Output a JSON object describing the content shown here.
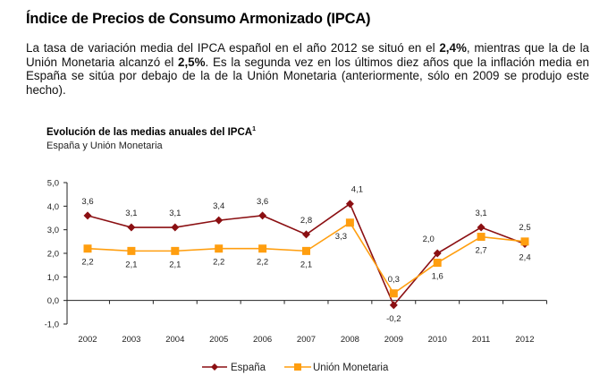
{
  "page": {
    "title": "Índice de Precios de Consumo Armonizado (IPCA)",
    "paragraph": [
      {
        "text": "La tasa de variación media del IPCA español en el año 2012 se situó en el ",
        "bold": false
      },
      {
        "text": "2,4%",
        "bold": true
      },
      {
        "text": ", mientras que la de la Unión Monetaria alcanzó el ",
        "bold": false
      },
      {
        "text": "2,5%",
        "bold": true
      },
      {
        "text": ". Es la segunda vez en los últimos diez años que la inflación media en España se sitúa por debajo de la de la Unión Monetaria (anteriormente, sólo en 2009 se produjo este hecho).",
        "bold": false
      }
    ]
  },
  "chart_data": {
    "type": "line",
    "title": "Evolución de las medias anuales del IPCA",
    "title_superscript": "1",
    "subtitle": "España y Unión Monetaria",
    "xlabel": "",
    "ylabel": "",
    "categories": [
      "2002",
      "2003",
      "2004",
      "2005",
      "2006",
      "2007",
      "2008",
      "2009",
      "2010",
      "2011",
      "2012"
    ],
    "ylim": [
      -1.0,
      5.0
    ],
    "yticks": [
      5.0,
      4.0,
      3.0,
      2.0,
      1.0,
      0.0,
      -1.0
    ],
    "ytick_labels": [
      "5,0",
      "4,0",
      "3,0",
      "2,0",
      "1,0",
      "0,0",
      "-1,0"
    ],
    "grid": false,
    "legend_position": "bottom-center",
    "series": [
      {
        "name": "España",
        "color": "#8b0f12",
        "marker": "diamond",
        "values": [
          3.6,
          3.1,
          3.1,
          3.4,
          3.6,
          2.8,
          4.1,
          -0.2,
          2.0,
          3.1,
          2.4
        ],
        "labels": [
          "3,6",
          "3,1",
          "3,1",
          "3,4",
          "3,6",
          "2,8",
          "4,1",
          "-0,2",
          "2,0",
          "3,1",
          "2,4"
        ],
        "label_pos": [
          "above",
          "above",
          "above",
          "above",
          "above",
          "above",
          "above-right",
          "below",
          "above-left",
          "above",
          "below"
        ]
      },
      {
        "name": "Unión Monetaria",
        "color": "#ff9e0f",
        "marker": "square",
        "values": [
          2.2,
          2.1,
          2.1,
          2.2,
          2.2,
          2.1,
          3.3,
          0.3,
          1.6,
          2.7,
          2.5
        ],
        "labels": [
          "2,2",
          "2,1",
          "2,1",
          "2,2",
          "2,2",
          "2,1",
          "3,3",
          "0,3",
          "1,6",
          "2,7",
          "2,5"
        ],
        "label_pos": [
          "below",
          "below",
          "below",
          "below",
          "below",
          "below",
          "below-left",
          "above",
          "below",
          "below",
          "above"
        ]
      }
    ]
  }
}
